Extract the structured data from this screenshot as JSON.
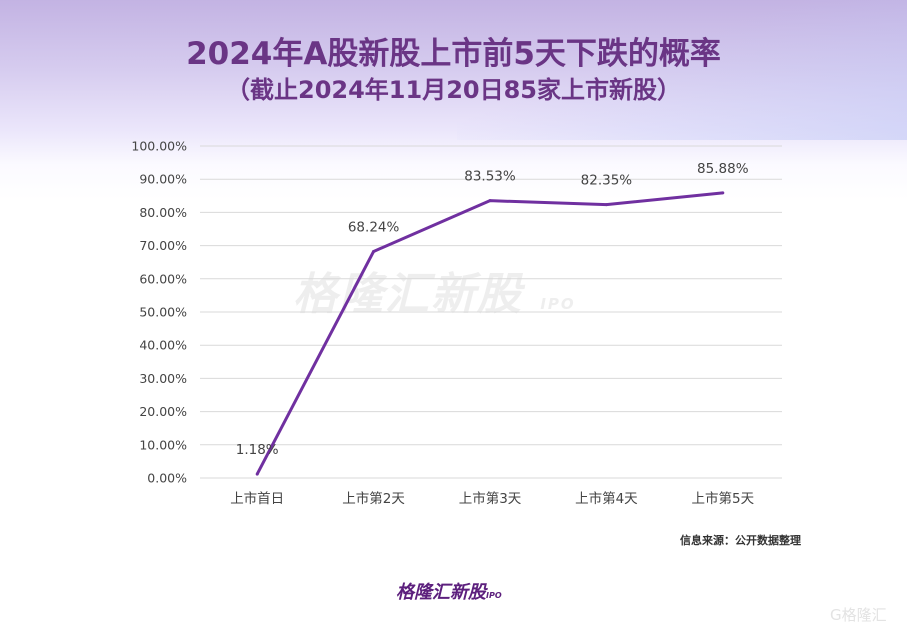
{
  "title": "2024年A股新股上市前5天下跌的概率",
  "subtitle": "（截止2024年11月20日85家上市新股）",
  "source": "信息来源：公开数据整理",
  "watermark": {
    "text": "格隆汇新股",
    "suffix": "IPO"
  },
  "logo": {
    "text": "格隆汇新股",
    "suffix": "IPO"
  },
  "corner_logo": "G格隆汇",
  "colors": {
    "line": "#7030a0",
    "title": "#6a3585",
    "grid": "#d9d9d9"
  },
  "chart_data": {
    "type": "line",
    "categories": [
      "上市首日",
      "上市第2天",
      "上市第3天",
      "上市第4天",
      "上市第5天"
    ],
    "values": [
      1.18,
      68.24,
      83.53,
      82.35,
      85.88
    ],
    "data_labels": [
      "1.18%",
      "68.24%",
      "83.53%",
      "82.35%",
      "85.88%"
    ],
    "y_ticks": [
      "0.00%",
      "10.00%",
      "20.00%",
      "30.00%",
      "40.00%",
      "50.00%",
      "60.00%",
      "70.00%",
      "80.00%",
      "90.00%",
      "100.00%"
    ],
    "ylim": [
      0,
      100
    ],
    "grid": true,
    "legend": "none"
  }
}
